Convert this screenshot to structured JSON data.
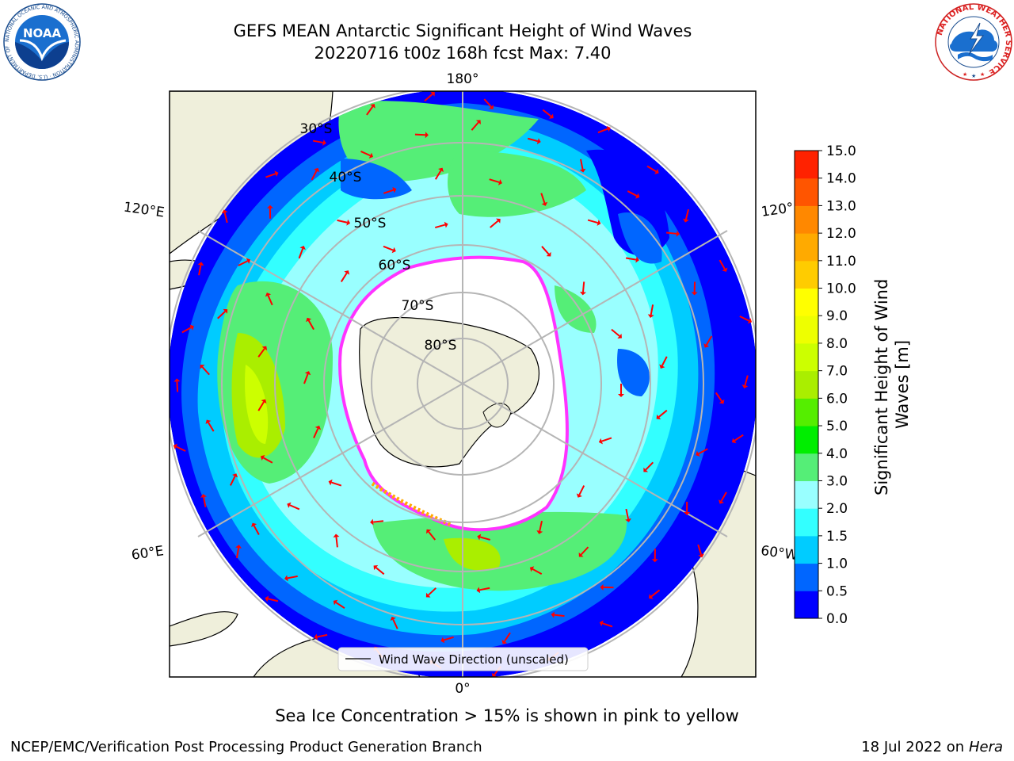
{
  "title": {
    "line1": "GEFS MEAN Antarctic Significant Height of Wind Waves",
    "line2": "20220716 t00z 168h fcst   Max: 7.40"
  },
  "map": {
    "longitude_labels": {
      "top": "180°",
      "left_upper": "120°E",
      "right_upper": "120°",
      "left_lower": "60°E",
      "right_lower": "60°W",
      "bottom": "0°"
    },
    "latitude_labels": [
      "30°S",
      "40°S",
      "50°S",
      "60°S",
      "70°S",
      "80°S"
    ],
    "legend_label": "Wind Wave Direction (unscaled)",
    "arrow_color": "#ff0000",
    "land_color": "#efefdb",
    "ice_edge_color": "#ff33ff"
  },
  "colorbar": {
    "label": "Significant Height of Wind Waves [m]",
    "ticks": [
      "0.0",
      "0.5",
      "1.0",
      "1.5",
      "2.0",
      "3.0",
      "4.0",
      "5.0",
      "6.0",
      "7.0",
      "8.0",
      "9.0",
      "10.0",
      "11.0",
      "12.0",
      "13.0",
      "14.0",
      "15.0"
    ],
    "colors": [
      "#0000ff",
      "#0066ff",
      "#00ccff",
      "#33ffff",
      "#99ffff",
      "#55ee77",
      "#00ee00",
      "#55ee00",
      "#aaee00",
      "#ccff00",
      "#eeff00",
      "#ffff00",
      "#ffcc00",
      "#ffaa00",
      "#ff8800",
      "#ff5500",
      "#ff2200"
    ]
  },
  "ice_note": "Sea Ice Concentration > 15% is shown in pink to yellow",
  "footer": {
    "left": "NCEP/EMC/Verification Post Processing Product Generation Branch",
    "right_prefix": "18 Jul 2022 on ",
    "right_italic": "Hera"
  },
  "logos": {
    "noaa": "NOAA",
    "noaa_ring": "NATIONAL OCEANIC AND ATMOSPHERIC ADMINISTRATION · U.S. DEPARTMENT OF COMMERCE",
    "nws_ring": "NATIONAL WEATHER SERVICE"
  }
}
